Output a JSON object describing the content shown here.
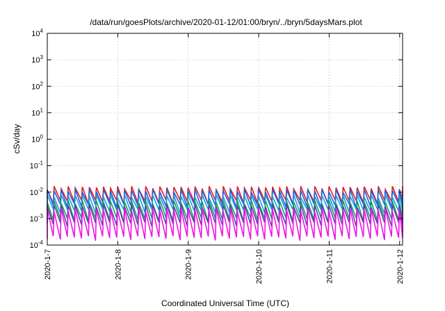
{
  "chart_data": {
    "type": "line",
    "title": "/data/run/goesPlots/archive/2020-01-12/01:00/bryn/../bryn/5daysMars.plot",
    "xlabel": "Coordinated Universal Time (UTC)",
    "ylabel": "cSv/day",
    "y_scale": "log",
    "ylim": [
      0.0001,
      10000
    ],
    "y_ticks": [
      {
        "base": "10",
        "exp": "-4",
        "value": 0.0001
      },
      {
        "base": "10",
        "exp": "-3",
        "value": 0.001
      },
      {
        "base": "10",
        "exp": "-2",
        "value": 0.01
      },
      {
        "base": "10",
        "exp": "-1",
        "value": 0.1
      },
      {
        "base": "10",
        "exp": "0",
        "value": 1
      },
      {
        "base": "10",
        "exp": "1",
        "value": 10
      },
      {
        "base": "10",
        "exp": "2",
        "value": 100
      },
      {
        "base": "10",
        "exp": "3",
        "value": 1000
      },
      {
        "base": "10",
        "exp": "4",
        "value": 10000
      }
    ],
    "xlim": [
      "2020-01-07",
      "2020-01-12 01:00"
    ],
    "x_ticks": [
      {
        "label": "2020-1-7",
        "date": "2020-01-07"
      },
      {
        "label": "2020-1-8",
        "date": "2020-01-08"
      },
      {
        "label": "2020-1-9",
        "date": "2020-01-09"
      },
      {
        "label": "2020-1-10",
        "date": "2020-01-10"
      },
      {
        "label": "2020-1-11",
        "date": "2020-01-11"
      },
      {
        "label": "2020-1-12",
        "date": "2020-01-12"
      }
    ],
    "grid": true,
    "cycle_hours": 2.4,
    "series": [
      {
        "color": "#e8191a",
        "peak": 0.0145,
        "trough": 0.0042
      },
      {
        "color": "#1f5fe0",
        "peak": 0.0112,
        "trough": 0.003
      },
      {
        "color": "#1a9ae0",
        "peak": 0.007,
        "trough": 0.0019
      },
      {
        "color": "#17a05a",
        "peak": 0.0042,
        "trough": 0.0009
      },
      {
        "color": "#5a3fb0",
        "peak": 0.003,
        "trough": 0.0006
      },
      {
        "color": "#f014e6",
        "peak": 0.0021,
        "trough": 0.00018
      }
    ]
  }
}
